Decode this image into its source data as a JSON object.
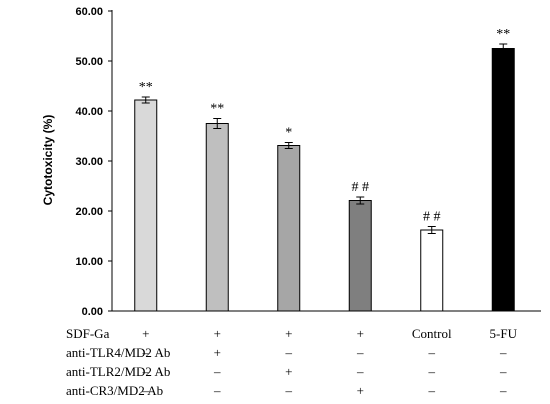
{
  "chart_data": {
    "type": "bar",
    "title": "",
    "xlabel": "",
    "ylabel": "Cytotoxicity (%)",
    "ylim": [
      0,
      60
    ],
    "yticks": [
      "0.00",
      "10.00",
      "20.00",
      "30.00",
      "40.00",
      "50.00",
      "60.00"
    ],
    "grid": false,
    "values": [
      42.2,
      37.5,
      33.1,
      22.1,
      16.2,
      52.5
    ],
    "errors": [
      0.6,
      1.0,
      0.6,
      0.7,
      0.7,
      0.9
    ],
    "annotations": [
      "**",
      "**",
      "*",
      "# #",
      "# #",
      "**"
    ],
    "colors": [
      "#d9d9d9",
      "#bfbfbf",
      "#a6a6a6",
      "#7f7f7f",
      "#ffffff",
      "#000000"
    ],
    "condition_rows": [
      {
        "label": "SDF-Ga",
        "cells": [
          "+",
          "+",
          "+",
          "+",
          "Control",
          "5-FU"
        ]
      },
      {
        "label": "anti-TLR4/MD2 Ab",
        "cells": [
          "–",
          "+",
          "–",
          "–",
          "–",
          "–"
        ]
      },
      {
        "label": "anti-TLR2/MD2 Ab",
        "cells": [
          "–",
          "–",
          "+",
          "–",
          "–",
          "–"
        ]
      },
      {
        "label": "anti-CR3/MD2 Ab",
        "cells": [
          "–",
          "–",
          "–",
          "+",
          "–",
          "–"
        ]
      }
    ]
  }
}
